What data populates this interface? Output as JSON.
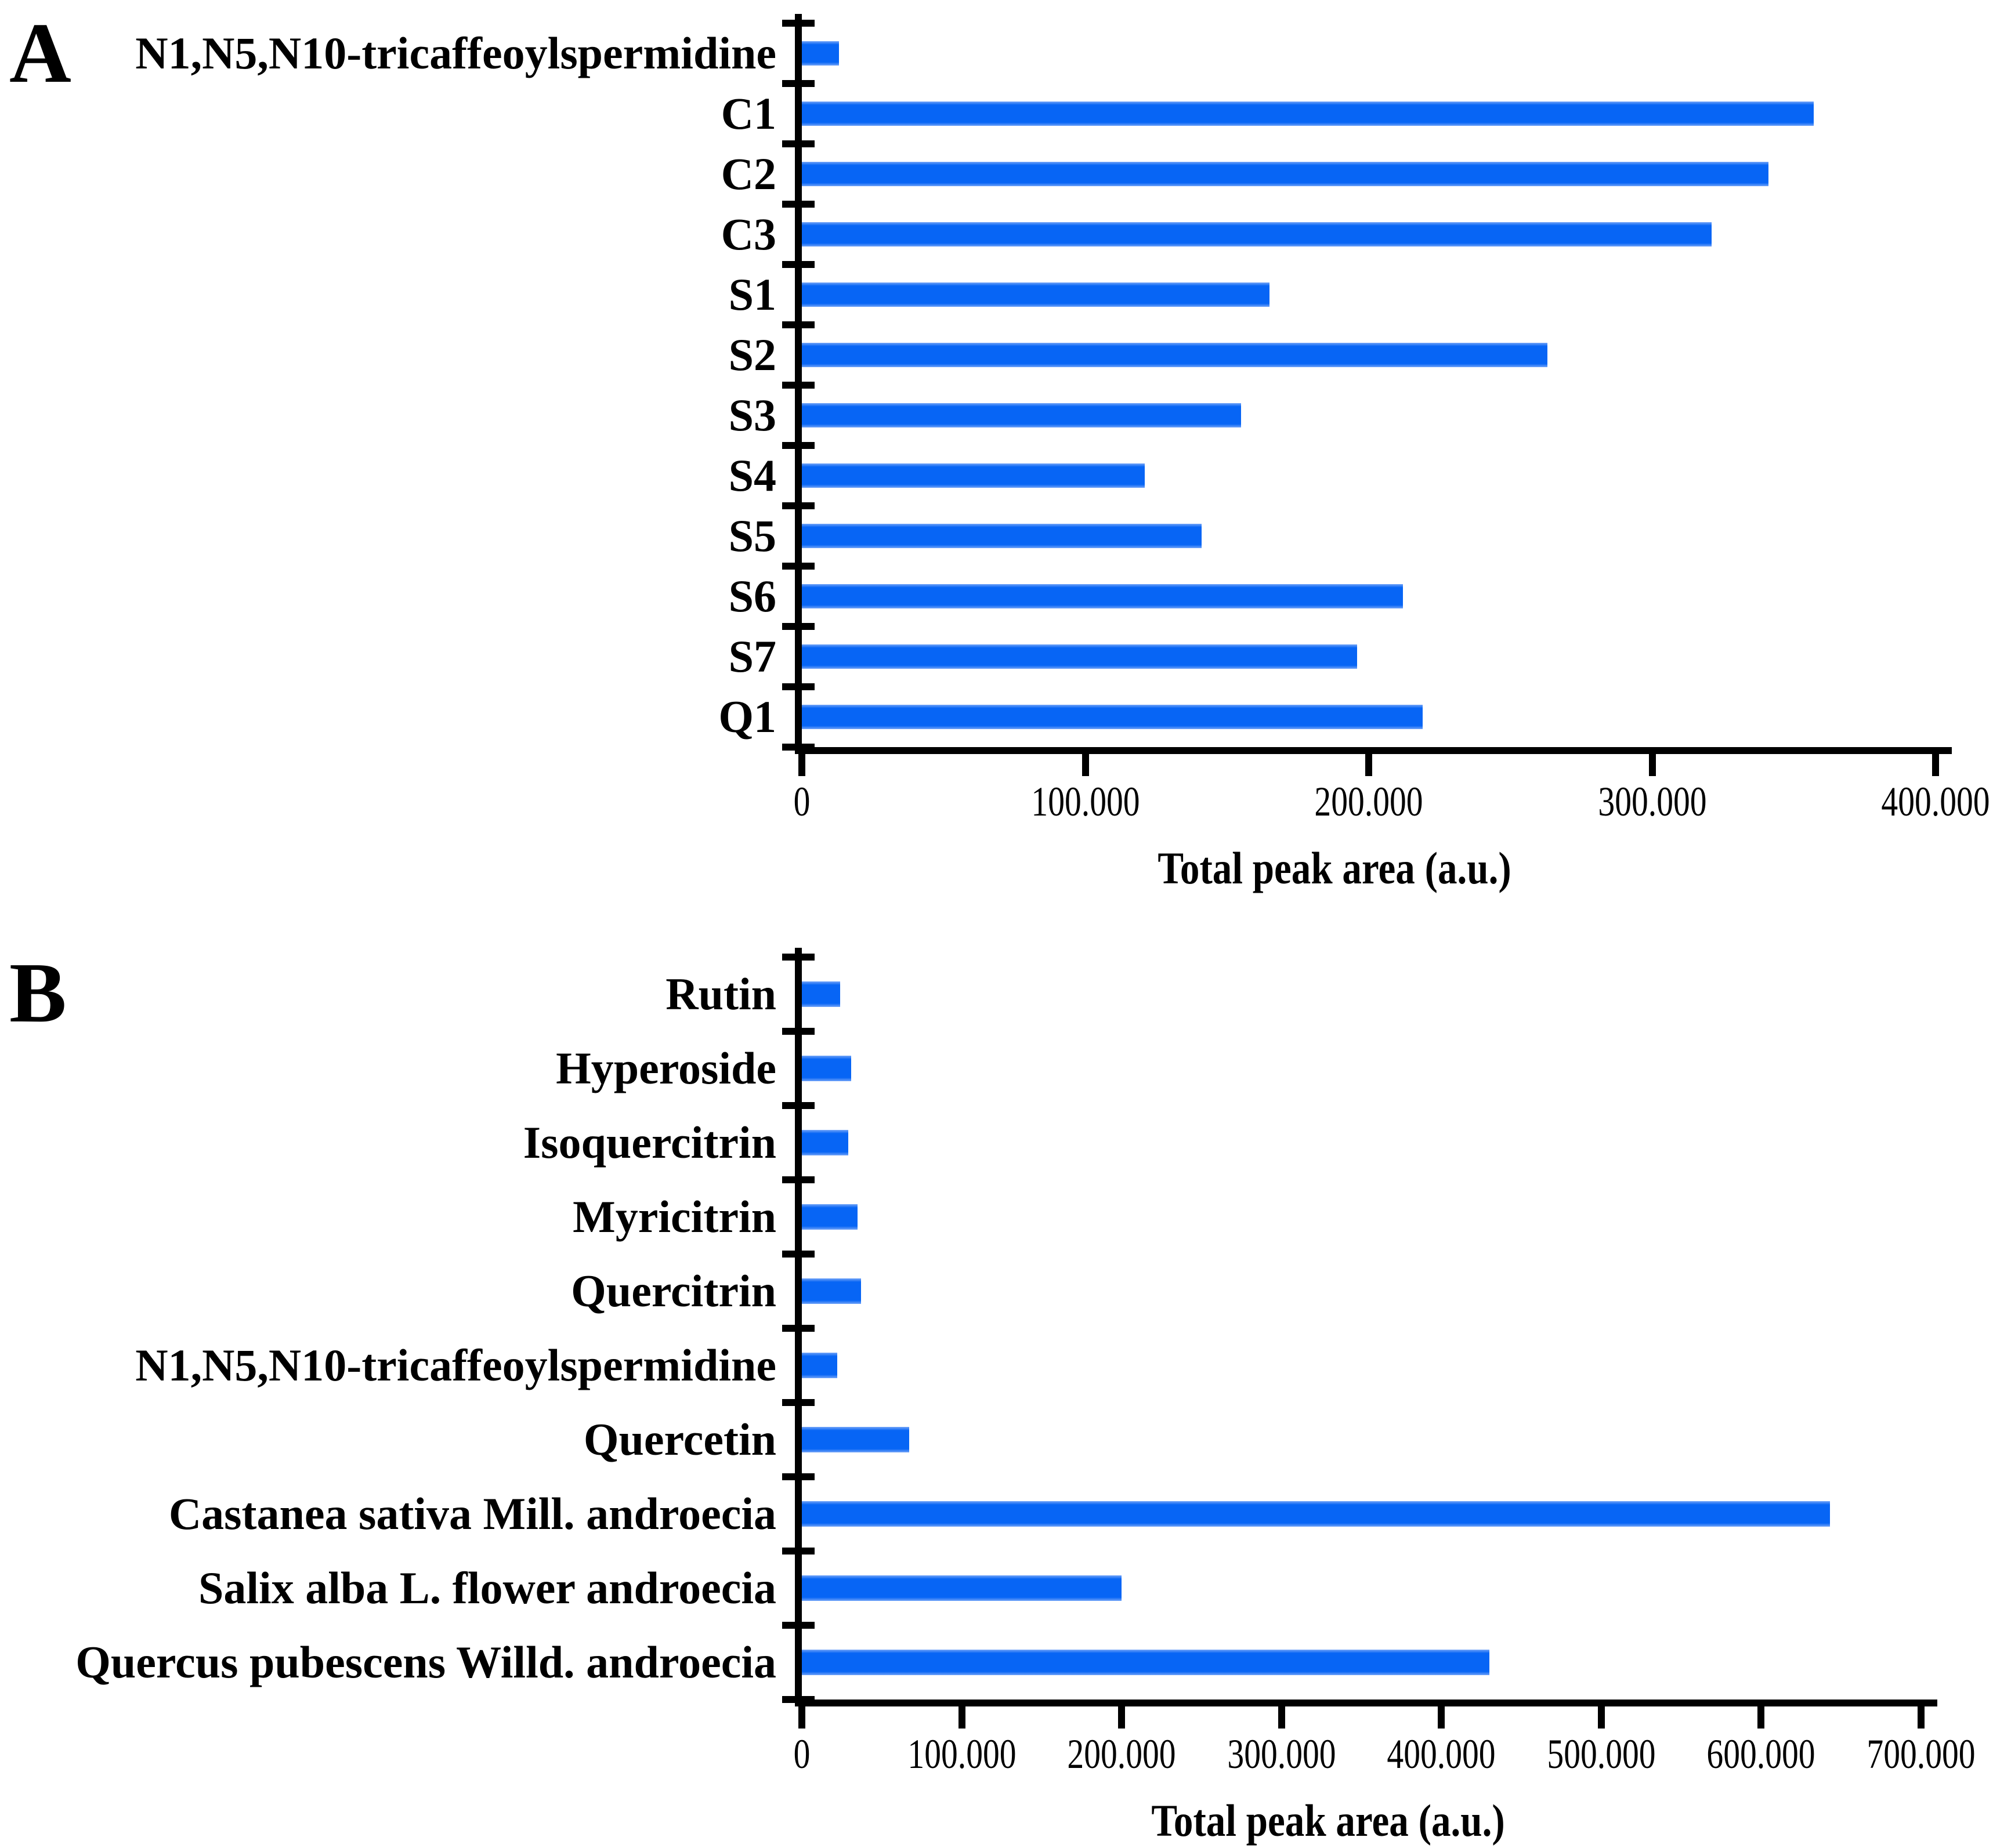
{
  "page": {
    "background": "#ffffff"
  },
  "chart_data": [
    {
      "type": "bar",
      "orientation": "horizontal",
      "panel": "A",
      "xlabel": "Total peak area (a.u.)",
      "xlim": [
        0,
        400000
      ],
      "x_tick_labels": [
        "0",
        "100.000",
        "200.000",
        "300.000",
        "400.000"
      ],
      "grid": false,
      "legend": "none",
      "bar_color": "#0765f5",
      "axis_color": "#000000",
      "categories": [
        "N1,N5,N10-tricaffeoylspermidine",
        "C1",
        "C2",
        "C3",
        "S1",
        "S2",
        "S3",
        "S4",
        "S5",
        "S6",
        "S7",
        "Q1"
      ],
      "values": [
        13000,
        357000,
        341000,
        321000,
        165000,
        263000,
        155000,
        121000,
        141000,
        212000,
        196000,
        219000
      ]
    },
    {
      "type": "bar",
      "orientation": "horizontal",
      "panel": "B",
      "xlabel": "Total peak area (a.u.)",
      "xlim": [
        0,
        700000
      ],
      "x_tick_labels": [
        "0",
        "100.000",
        "200.000",
        "300.000",
        "400.000",
        "500.000",
        "600.000",
        "700.000"
      ],
      "grid": false,
      "legend": "none",
      "bar_color": "#0765f5",
      "axis_color": "#000000",
      "categories": [
        "Rutin",
        "Hyperoside",
        "Isoquercitrin",
        "Myricitrin",
        "Quercitrin",
        "N1,N5,N10-tricaffeoylspermidine",
        "Quercetin",
        "Castanea sativa Mill. androecia",
        "Salix alba L. flower androecia",
        "Quercus pubescens Willd. androecia"
      ],
      "values": [
        24000,
        31000,
        29000,
        35000,
        37000,
        22000,
        67000,
        643000,
        200000,
        430000
      ]
    }
  ]
}
